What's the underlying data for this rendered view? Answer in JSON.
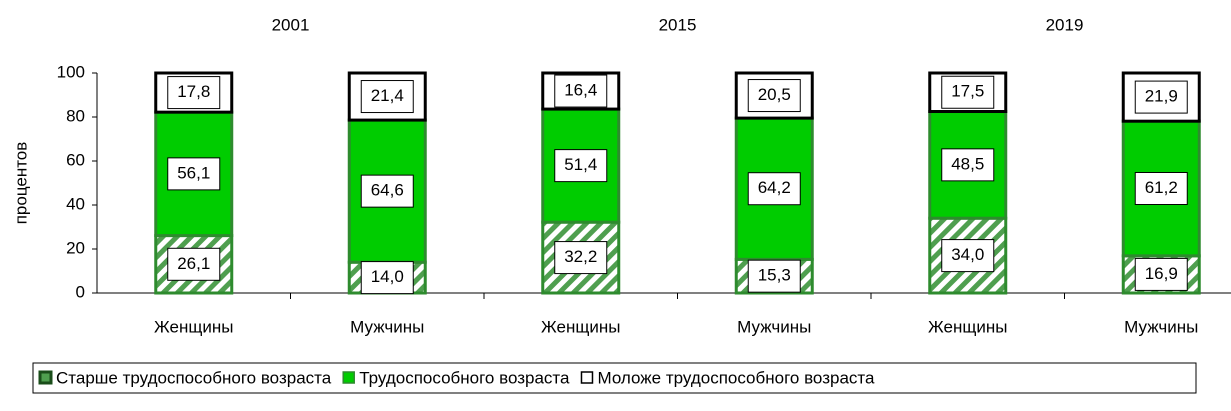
{
  "chart_data": {
    "type": "stacked_bar",
    "groups": [
      "2001",
      "2015",
      "2019"
    ],
    "categories": [
      "Женщины",
      "Мужчины",
      "Женщины",
      "Мужчины",
      "Женщины",
      "Мужчины"
    ],
    "y_label": "процентов",
    "ylim": [
      0,
      100
    ],
    "yticks": [
      0,
      20,
      40,
      60,
      80,
      100
    ],
    "series": [
      {
        "name": "Старше трудоспособного возраста",
        "color": "#4f9f4f",
        "hatch": true,
        "values": [
          26.1,
          14.0,
          32.2,
          15.3,
          34.0,
          16.9
        ],
        "value_labels": [
          "26,1",
          "14,0",
          "32,2",
          "15,3",
          "34,0",
          "16,9"
        ]
      },
      {
        "name": "Трудоспособного возраста",
        "color": "#00cc00",
        "values": [
          56.1,
          64.6,
          51.4,
          64.2,
          48.5,
          61.2
        ],
        "value_labels": [
          "56,1",
          "64,6",
          "51,4",
          "64,2",
          "48,5",
          "61,2"
        ]
      },
      {
        "name": "Моложе трудоспособного возраста",
        "color": "#ffffff",
        "values": [
          17.8,
          21.4,
          16.4,
          20.5,
          17.5,
          21.9
        ],
        "value_labels": [
          "17,8",
          "21,4",
          "16,4",
          "20,5",
          "17,5",
          "21,9"
        ]
      }
    ]
  }
}
